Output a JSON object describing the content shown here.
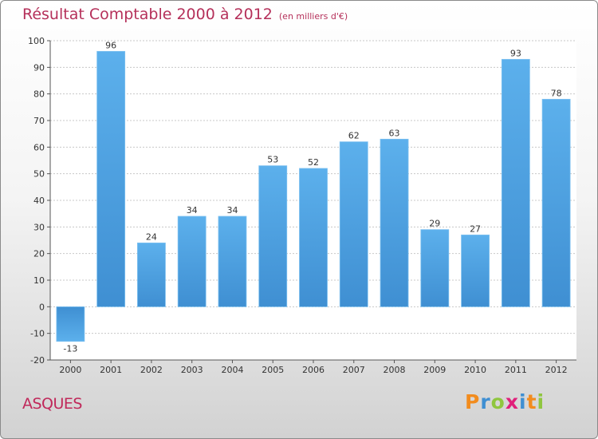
{
  "chart_data": {
    "type": "bar",
    "title": "Résultat Comptable 2000 à 2012",
    "unit_label": "(en milliers d'€)",
    "categories": [
      "2000",
      "2001",
      "2002",
      "2003",
      "2004",
      "2005",
      "2006",
      "2007",
      "2008",
      "2009",
      "2010",
      "2011",
      "2012"
    ],
    "values": [
      -13,
      96,
      24,
      34,
      34,
      53,
      52,
      62,
      63,
      29,
      27,
      93,
      78
    ],
    "data_labels": [
      "-13",
      "96",
      "24",
      "34",
      "34",
      "53",
      "52",
      "62",
      "63",
      "29",
      "27",
      "93",
      "78"
    ],
    "ylim": [
      -20,
      100
    ],
    "yticks": [
      -20,
      -10,
      0,
      10,
      20,
      30,
      40,
      50,
      60,
      70,
      80,
      90,
      100
    ],
    "grid": true,
    "colors": {
      "bar": "#3f8fd2",
      "bar_light": "#5cb0ec",
      "title": "#b5305a"
    }
  },
  "place_name": "ASQUES",
  "logo": {
    "letters": [
      "P",
      "r",
      "o",
      "x",
      "i",
      "t",
      "i"
    ],
    "colors": [
      "#f28c1e",
      "#3f8fd2",
      "#8fc63f",
      "#e0207a",
      "#3f8fd2",
      "#f28c1e",
      "#8fc63f"
    ]
  }
}
